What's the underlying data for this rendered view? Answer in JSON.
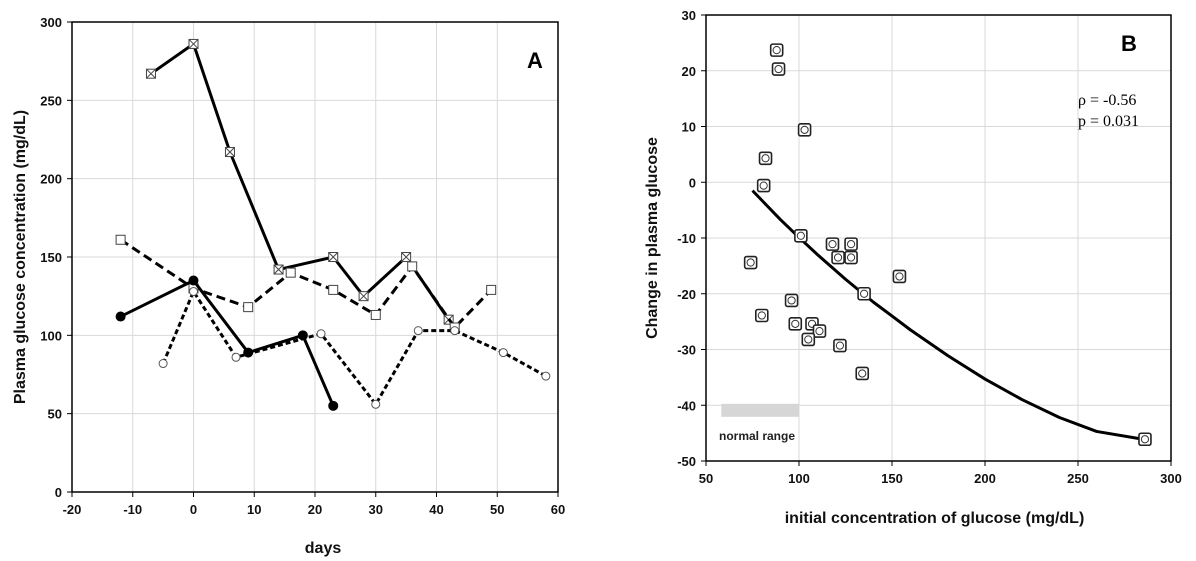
{
  "chart_data": [
    {
      "type": "line",
      "panel_label": "A",
      "xlabel": "days",
      "ylabel": "Plasma glucose concentration (mg/dL)",
      "xlim": [
        -20,
        60
      ],
      "ylim": [
        0,
        300
      ],
      "xticks": [
        -20,
        -10,
        0,
        10,
        20,
        30,
        40,
        50,
        60
      ],
      "yticks": [
        0,
        50,
        100,
        150,
        200,
        250,
        300
      ],
      "grid": true,
      "series": [
        {
          "style": "solid",
          "marker": "crossed-square",
          "x": [
            -7,
            0,
            6,
            14,
            23,
            28,
            35,
            42
          ],
          "y": [
            267,
            286,
            217,
            142,
            150,
            125,
            150,
            110
          ]
        },
        {
          "style": "dashed",
          "marker": "square",
          "x": [
            -12,
            0,
            9,
            16,
            23,
            30,
            36,
            43,
            49
          ],
          "y": [
            161,
            130,
            118,
            140,
            129,
            113,
            144,
            105,
            129
          ]
        },
        {
          "style": "solid",
          "marker": "filled-circle",
          "x": [
            -12,
            0,
            9,
            18,
            23
          ],
          "y": [
            112,
            135,
            89,
            100,
            55
          ]
        },
        {
          "style": "dotted",
          "marker": "open-circle",
          "x": [
            -5,
            0,
            7,
            21,
            30,
            37,
            43,
            51,
            58
          ],
          "y": [
            82,
            128,
            86,
            101,
            56,
            103,
            103,
            89,
            74
          ]
        }
      ]
    },
    {
      "type": "scatter",
      "panel_label": "B",
      "xlabel": "initial concentration of glucose (mg/dL)",
      "ylabel": "Change in plasma glucose",
      "xlim": [
        50,
        300
      ],
      "ylim": [
        -50,
        30
      ],
      "xticks": [
        50,
        100,
        150,
        200,
        250,
        300
      ],
      "yticks": [
        -50,
        -40,
        -30,
        -20,
        -10,
        0,
        10,
        20,
        30
      ],
      "grid": true,
      "stats": {
        "rho": "ρ = -0.56",
        "p": "p = 0.031"
      },
      "normal_range": {
        "label": "normal range",
        "x": [
          55,
          100
        ]
      },
      "points": {
        "x": [
          88,
          89,
          82,
          81,
          103,
          101,
          74,
          80,
          96,
          98,
          107,
          111,
          105,
          118,
          121,
          128,
          128,
          122,
          135,
          154,
          134,
          286
        ],
        "y": [
          23.7,
          20.3,
          4.3,
          -0.6,
          9.4,
          -9.6,
          -14.4,
          -23.9,
          -21.2,
          -25.4,
          -25.4,
          -26.7,
          -28.2,
          -11.1,
          -13.5,
          -11.1,
          -13.5,
          -29.3,
          -20.0,
          -16.9,
          -34.3,
          -46.1
        ]
      },
      "fit_curve": {
        "x": [
          75,
          90,
          100,
          110,
          125,
          140,
          160,
          180,
          200,
          220,
          240,
          260,
          285
        ],
        "y": [
          -1.5,
          -6.7,
          -9.9,
          -13.0,
          -17.4,
          -21.5,
          -26.5,
          -31.1,
          -35.3,
          -39.0,
          -42.2,
          -44.7,
          -46.1
        ]
      }
    }
  ]
}
